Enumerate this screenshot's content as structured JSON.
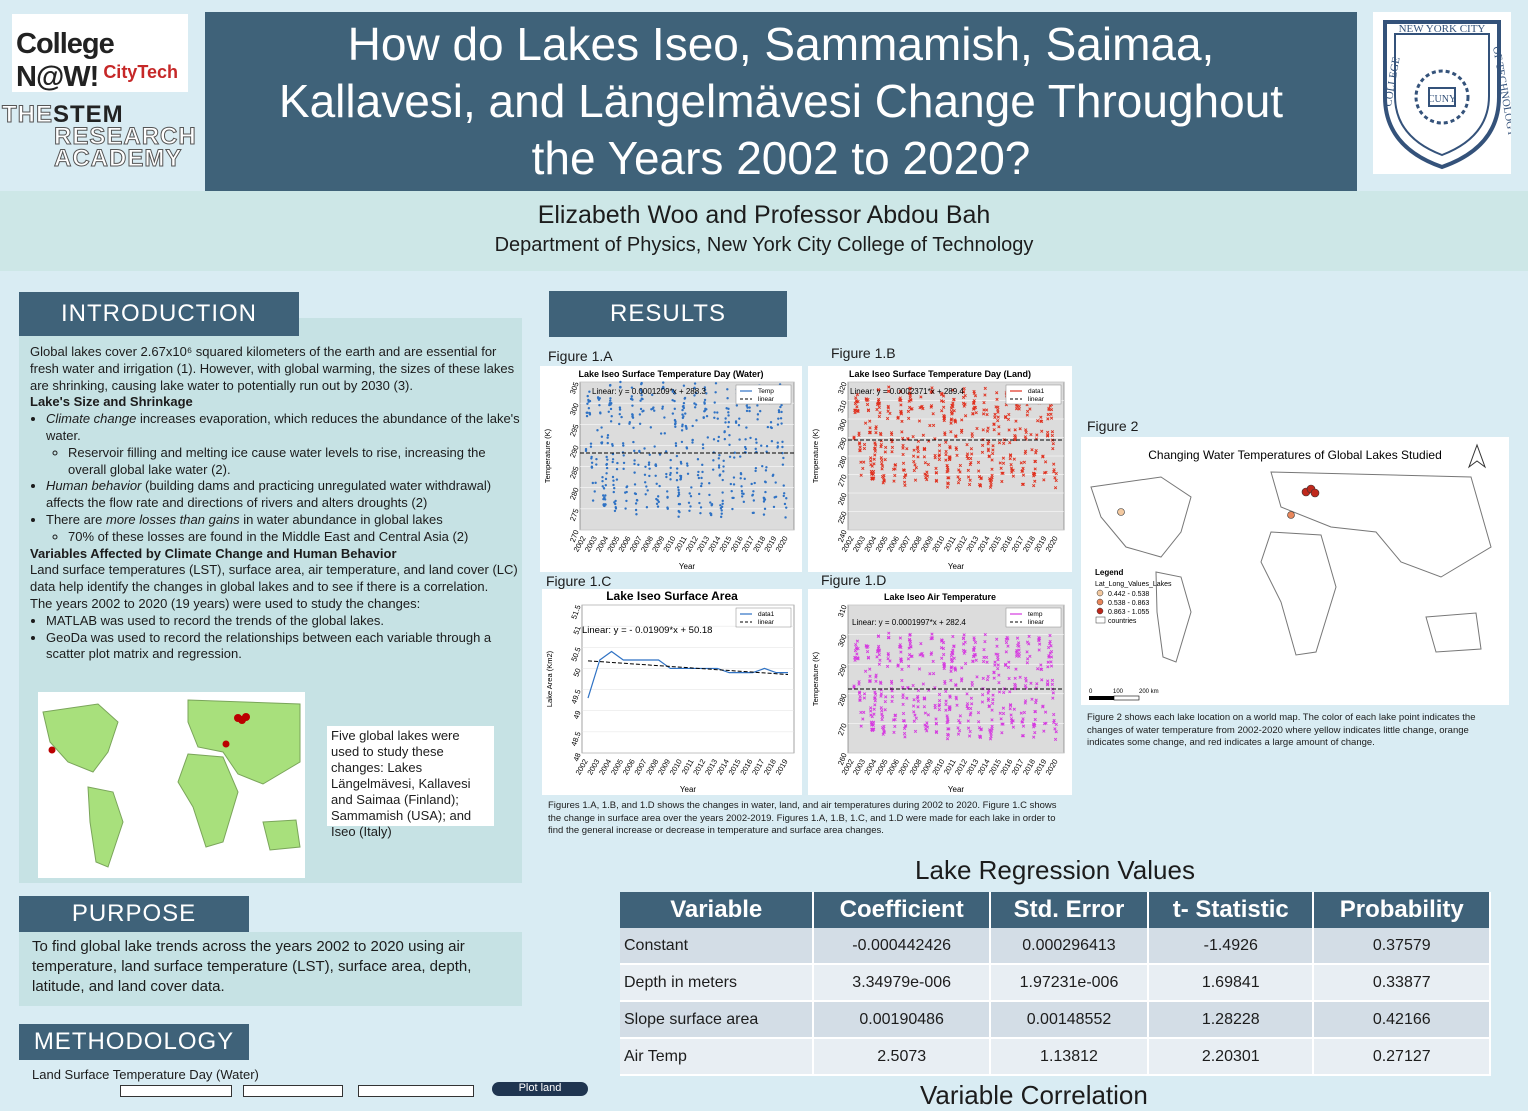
{
  "logos": {
    "college_now": [
      "College N@W!",
      "CityTech"
    ],
    "stem": [
      "THE",
      "STEM",
      "RESEARCH",
      "ACADEMY"
    ],
    "nyc": {
      "top": "NEW YORK CITY",
      "left": "COLLEGE",
      "right": "OF TECHNOLOGY",
      "center": "CUNY"
    }
  },
  "header": {
    "title_lines": [
      "How do Lakes Iseo, Sammamish, Saimaa,",
      "Kallavesi, and Längelmävesi Change Throughout",
      "the Years 2002 to 2020?"
    ],
    "authors": "Elizabeth Woo and Professor Abdou Bah",
    "department": "Department of Physics, New York City College of Technology"
  },
  "introduction": {
    "heading": "INTRODUCTION",
    "p1": "Global lakes cover 2.67x10⁶ squared kilometers of the earth and are essential for fresh water and irrigation (1). However, with global warming, the sizes of these lakes are shrinking, causing lake water to potentially run out by 2030 (3).",
    "sub1": "Lake's Size and Shrinkage",
    "b1_em": "Climate change",
    "b1": " increases evaporation, which reduces the abundance of the lake's water.",
    "b1a": "Reservoir filling and melting ice cause water levels to rise, increasing the overall global lake water (2).",
    "b2_em": "Human behavior",
    "b2": " (building dams and practicing unregulated water withdrawal) affects the flow rate and directions of rivers and alters droughts (2)",
    "b3_pre": "There are ",
    "b3_em": "more losses than gains",
    "b3": " in water abundance in global lakes",
    "b3a": "70% of these losses are found in the Middle East and Central Asia (2)",
    "sub2": "Variables Affected by Climate Change and Human Behavior",
    "p2": "Land surface temperatures (LST), surface area, air temperature, and land cover (LC) data help identify the changes in global lakes and to see if there is a correlation.",
    "p3": "The years 2002 to 2020 (19 years) were used to study the changes:",
    "b4": "MATLAB was used to record the trends of the global lakes.",
    "b5": "GeoDa was used to record the relationships between each variable through a scatter plot matrix and regression.",
    "map_note": "Five global lakes were used to study these changes: Lakes Längelmävesi, Kallavesi and Saimaa (Finland); Sammamish (USA); and Iseo (Italy)"
  },
  "purpose": {
    "heading": "PURPOSE",
    "text": "To find global lake trends across the years 2002 to 2020 using air temperature, land surface temperature (LST), surface area, depth, latitude, and land cover data."
  },
  "methodology": {
    "heading": "METHODOLOGY",
    "sub": "Land Surface Temperature Day (Water)",
    "box_label": "Plot land"
  },
  "results": {
    "heading": "RESULTS",
    "fig_labels": [
      "Figure 1.A",
      "Figure 1.B",
      "Figure 1.C",
      "Figure 1.D",
      "Figure 2"
    ],
    "caption1": "Figures 1.A, 1.B, and 1.D shows the changes in water, land, and air temperatures during 2002 to 2020. Figure 1.C shows the change in surface area over the years 2002-2019. Figures 1.A, 1.B, 1.C, and 1.D were made for each lake in order to find the general increase or decrease in temperature and surface area changes.",
    "fig2_title": "Changing Water Temperatures of Global Lakes Studied",
    "fig2_legend_title": "Legend",
    "fig2_legend_sub": "Lat_Long_Values_Lakes",
    "fig2_legend": [
      "0.442 - 0.538",
      "0.538 - 0.863",
      "0.863 - 1.055",
      "countries"
    ],
    "fig2_colors": [
      "#f3c9a0",
      "#e8875c",
      "#c0281c"
    ],
    "fig2_scale": [
      "0",
      "100",
      "200 km"
    ],
    "caption2": "Figure 2 shows each lake location on a world map. The color of each lake point indicates the changes of water temperature from 2002-2020 where yellow indicates little change, orange indicates some change, and red indicates a large amount of change."
  },
  "chart_data": [
    {
      "type": "scatter",
      "title": "Lake Iseo Surface Temperature Day (Water)",
      "xlabel": "Year",
      "ylabel": "Temperature (K)",
      "x_ticks": [
        "2002",
        "2003",
        "2004",
        "2005",
        "2006",
        "2007",
        "2008",
        "2009",
        "2010",
        "2011",
        "2012",
        "2013",
        "2014",
        "2015",
        "2016",
        "2017",
        "2018",
        "2019",
        "2020"
      ],
      "ylim": [
        270,
        305
      ],
      "y_ticks": [
        270,
        275,
        280,
        285,
        290,
        295,
        300,
        305
      ],
      "annotation": "Linear:  y = 0.0001209*x + 288.3",
      "legend": [
        "Temp",
        "linear"
      ],
      "color": "#2f72c4",
      "series_shape": {
        "years": 19,
        "min": 276,
        "max": 302
      }
    },
    {
      "type": "scatter",
      "title": "Lake Iseo Surface Temperature Day (Land)",
      "xlabel": "Year",
      "ylabel": "Temperature (K)",
      "x_ticks": [
        "2002",
        "2003",
        "2004",
        "2005",
        "2006",
        "2007",
        "2008",
        "2009",
        "2010",
        "2011",
        "2012",
        "2013",
        "2014",
        "2015",
        "2016",
        "2017",
        "2018",
        "2019",
        "2020"
      ],
      "ylim": [
        240,
        320
      ],
      "y_ticks": [
        240,
        250,
        260,
        270,
        280,
        290,
        300,
        310,
        320
      ],
      "annotation": "Linear:  y = 0.0002371*x + 289.4",
      "legend": [
        "data1",
        "linear"
      ],
      "color": "#e0301e",
      "series_shape": {
        "years": 19,
        "min": 268,
        "max": 312
      }
    },
    {
      "type": "line",
      "title": "Lake Iseo Surface Area",
      "xlabel": "Year",
      "ylabel": "Lake Area (Km2)",
      "x_ticks": [
        "2002",
        "2003",
        "2004",
        "2005",
        "2006",
        "2007",
        "2008",
        "2009",
        "2010",
        "2011",
        "2012",
        "2013",
        "2014",
        "2015",
        "2016",
        "2017",
        "2018",
        "2019"
      ],
      "ylim": [
        48,
        51.5
      ],
      "y_ticks": [
        48,
        48.5,
        49,
        49.5,
        50,
        50.5,
        51,
        51.5
      ],
      "x": [
        2002,
        2003,
        2004,
        2005,
        2006,
        2007,
        2008,
        2009,
        2010,
        2011,
        2012,
        2013,
        2014,
        2015,
        2016,
        2017,
        2018,
        2019
      ],
      "values": [
        49.3,
        50.2,
        50.4,
        50.2,
        50.2,
        50.2,
        50.2,
        50.0,
        50.0,
        50.0,
        50.0,
        50.0,
        49.9,
        49.9,
        49.9,
        50.0,
        49.9,
        49.9
      ],
      "annotation": "Linear:  y = - 0.01909*x + 50.18",
      "legend": [
        "data1",
        "linear"
      ],
      "color": "#2f72c4"
    },
    {
      "type": "scatter",
      "title": "Lake Iseo Air Temperature",
      "xlabel": "Year",
      "ylabel": "Temperature (K)",
      "x_ticks": [
        "2002",
        "2003",
        "2004",
        "2005",
        "2006",
        "2007",
        "2008",
        "2009",
        "2010",
        "2011",
        "2012",
        "2013",
        "2014",
        "2015",
        "2016",
        "2017",
        "2018",
        "2019",
        "2020"
      ],
      "ylim": [
        260,
        310
      ],
      "y_ticks": [
        260,
        270,
        280,
        290,
        300,
        310
      ],
      "annotation": "Linear:  y = 0.0001997*x + 282.4",
      "legend": [
        "temp",
        "linear"
      ],
      "color": "#d63ae0",
      "series_shape": {
        "years": 19,
        "min": 268,
        "max": 297
      }
    },
    {
      "type": "table",
      "title": "Lake Regression Values",
      "columns": [
        "Variable",
        "Coefficient",
        "Std. Error",
        "t- Statistic",
        "Probability"
      ],
      "rows": [
        [
          "Constant",
          "-0.000442426",
          "0.000296413",
          "-1.4926",
          "0.37579"
        ],
        [
          "Depth in meters",
          "3.34979e-006",
          "1.97231e-006",
          "1.69841",
          "0.33877"
        ],
        [
          "Slope surface area",
          "0.00190486",
          "0.00148552",
          "1.28228",
          "0.42166"
        ],
        [
          "Air Temp",
          "2.5073",
          "1.13812",
          "2.20301",
          "0.27127"
        ]
      ]
    }
  ],
  "next_heading": "Variable Correlation"
}
